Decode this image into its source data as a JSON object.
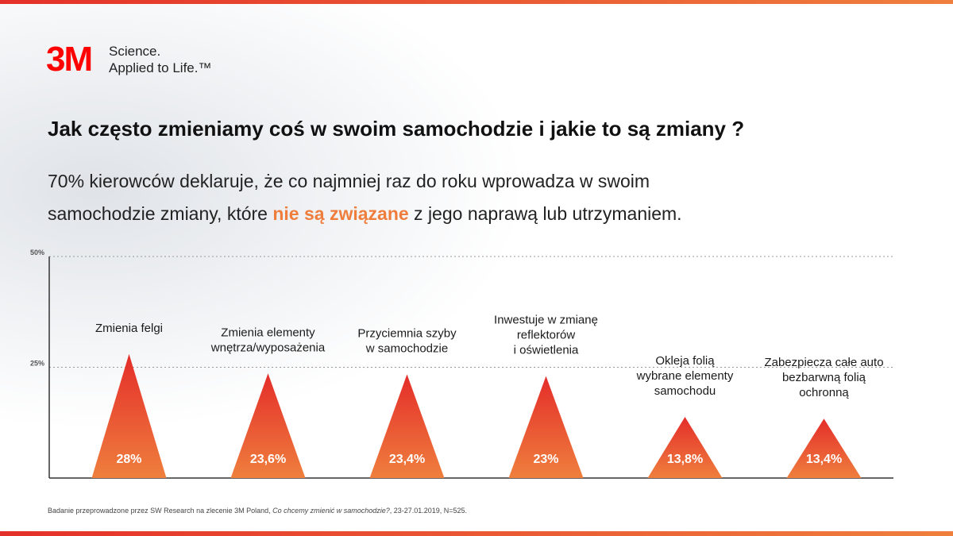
{
  "logo": {
    "mark": "3M",
    "tagline": [
      "Science.",
      "Applied to Life.™"
    ]
  },
  "title": "Jak często zmieniamy coś w swoim samochodzie i jakie to są zmiany ?",
  "subtitle": {
    "line1": "70% kierowców deklaruje, że co najmniej raz do roku wprowadza w swoim",
    "line2": [
      "samochodzie zmiany, które ",
      "nie są związane",
      " z jego naprawą lub utrzymaniem."
    ]
  },
  "chart_data": {
    "type": "triangle",
    "categories": [
      [
        "Zmienia felgi"
      ],
      [
        "Zmienia elementy",
        "wnętrza/wyposażenia"
      ],
      [
        "Przyciemnia szyby",
        "w samochodzie"
      ],
      [
        "Inwestuje w zmianę",
        "reflektorów",
        "i oświetlenia"
      ],
      [
        "Okleja folią",
        "wybrane elementy",
        "samochodu"
      ],
      [
        "Zabezpiecza całe auto",
        "bezbarwną folią",
        "ochronną"
      ]
    ],
    "values": [
      28,
      23.6,
      23.4,
      23,
      13.8,
      13.4
    ],
    "value_labels": [
      "28%",
      "23,6%",
      "23,4%",
      "23%",
      "13,8%",
      "13,4%"
    ],
    "colors": {
      "top": "#e42d2a",
      "bottom": "#ef7f3d"
    },
    "ylim": [
      0,
      50
    ],
    "yticks": [
      {
        "value": 25,
        "label": "25%"
      },
      {
        "value": 50,
        "label": "50%"
      }
    ],
    "grid": true
  },
  "footnote": [
    "Badanie przeprowadzone przez SW Research na zlecenie 3M Poland, ",
    "Co chcemy zmienić w samochodzie?",
    ", 23-27.01.2019, N=525."
  ]
}
